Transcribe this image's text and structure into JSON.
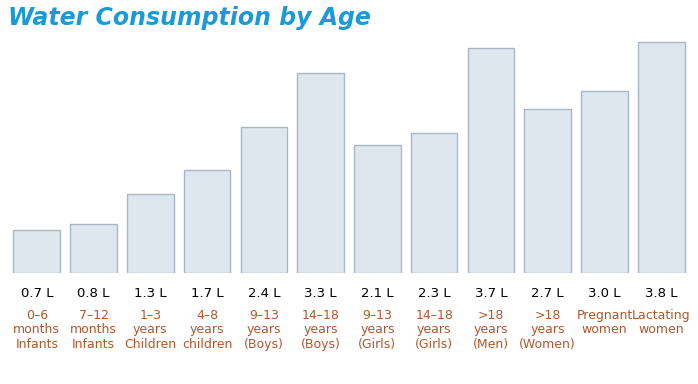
{
  "chart_data": {
    "type": "bar",
    "title": "Water Consumption by Age",
    "categories": [
      "0–6\nmonths\nInfants",
      "7–12\nmonths\nInfants",
      "1–3\nyears\nChildren",
      "4–8\nyears\nchildren",
      "9–13\nyears\n(Boys)",
      "14–18\nyears\n(Boys)",
      "9–13\nyears\n(Girls)",
      "14–18\nyears\n(Girls)",
      ">18\nyears\n(Men)",
      ">18\nyears\n(Women)",
      "Pregnant\nwomen",
      "Lactating\nwomen"
    ],
    "values": [
      0.7,
      0.8,
      1.3,
      1.7,
      2.4,
      3.3,
      2.1,
      2.3,
      3.7,
      2.7,
      3.0,
      3.8
    ],
    "value_labels": [
      "0.7 L",
      "0.8 L",
      "1.3 L",
      "1.7 L",
      "2.4 L",
      "3.3 L",
      "2.1 L",
      "2.3 L",
      "3.7 L",
      "2.7 L",
      "3.0 L",
      "3.8 L"
    ],
    "data_labels": true,
    "tick_labels": false,
    "color": "#dfe7ee"
  }
}
